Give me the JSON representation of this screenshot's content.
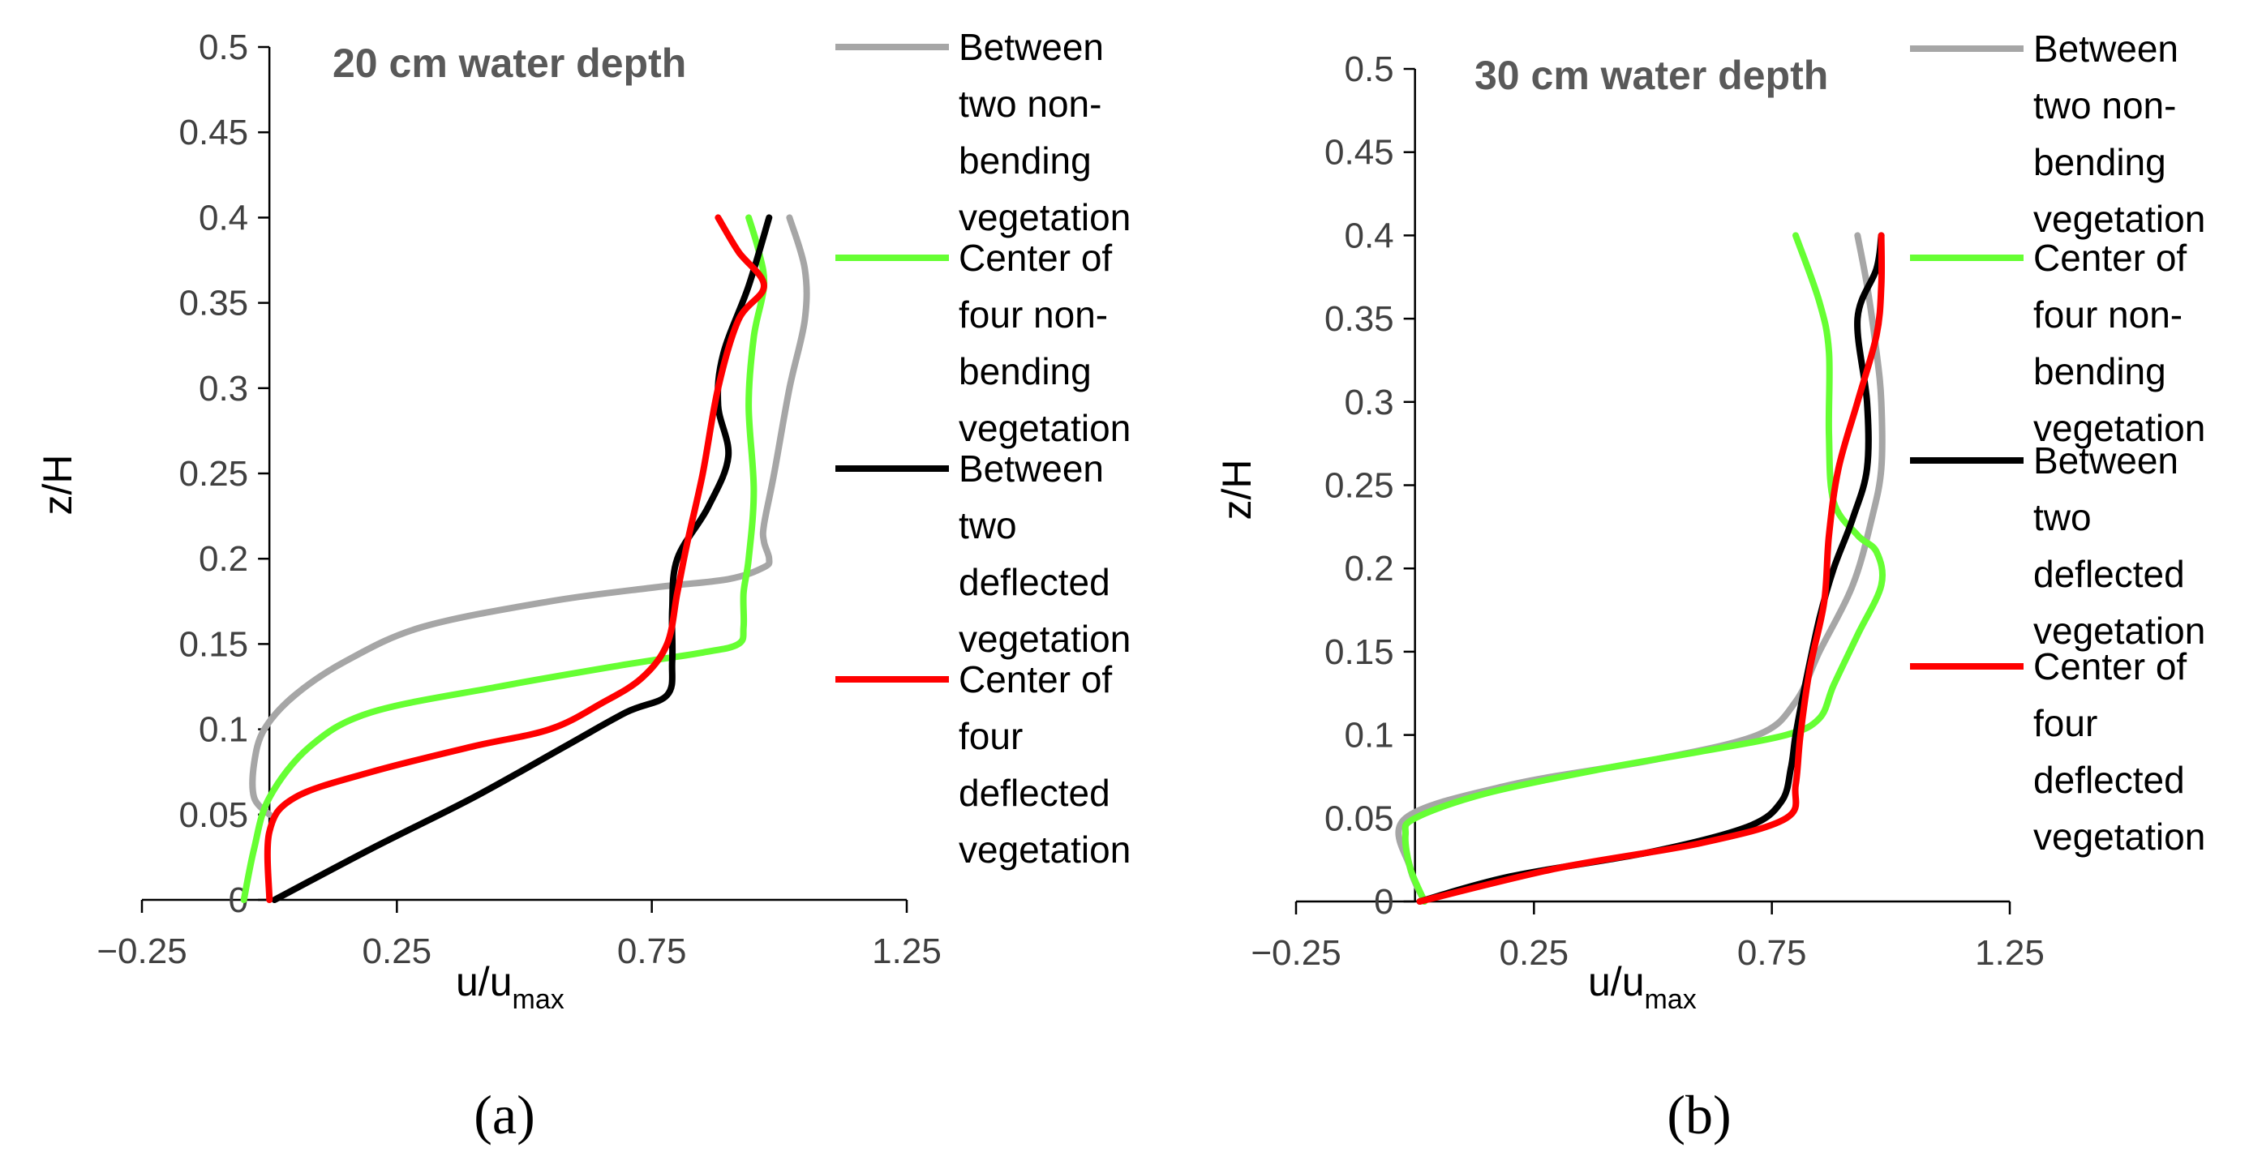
{
  "chart_data": [
    {
      "type": "line",
      "panel": "a",
      "title": "20 cm water depth",
      "xlabel_main": "u/u",
      "xlabel_sub": "max",
      "ylabel": "z/H",
      "xlim": [
        -0.25,
        1.25
      ],
      "ylim": [
        0,
        0.5
      ],
      "xticks": [
        -0.25,
        0.25,
        0.75,
        1.25
      ],
      "xtick_labels": [
        "−0.25",
        "0.25",
        "0.75",
        "1.25"
      ],
      "yticks": [
        0,
        0.05,
        0.1,
        0.15,
        0.2,
        0.25,
        0.3,
        0.35,
        0.4,
        0.45,
        0.5
      ],
      "ytick_labels": [
        "0",
        "0.05",
        "0.1",
        "0.15",
        "0.2",
        "0.25",
        "0.3",
        "0.35",
        "0.4",
        "0.45",
        "0.5"
      ],
      "legend_position": "right",
      "caption": "(a)",
      "series": [
        {
          "name": "Between two non-bending vegetation",
          "legend_lines": [
            "Between",
            "two non-",
            "bending",
            "vegetation"
          ],
          "color": "#a6a6a6",
          "points": [
            [
              0.0,
              0.05
            ],
            [
              -0.03,
              0.06
            ],
            [
              -0.03,
              0.08
            ],
            [
              -0.01,
              0.1
            ],
            [
              0.05,
              0.12
            ],
            [
              0.15,
              0.14
            ],
            [
              0.3,
              0.16
            ],
            [
              0.55,
              0.175
            ],
            [
              0.75,
              0.183
            ],
            [
              0.9,
              0.188
            ],
            [
              0.97,
              0.195
            ],
            [
              0.98,
              0.2
            ],
            [
              0.97,
              0.21
            ],
            [
              0.97,
              0.22
            ],
            [
              0.99,
              0.25
            ],
            [
              1.02,
              0.3
            ],
            [
              1.05,
              0.34
            ],
            [
              1.05,
              0.37
            ],
            [
              1.02,
              0.4
            ]
          ]
        },
        {
          "name": "Center of four non-bending vegetation",
          "legend_lines": [
            "Center of",
            "four non-",
            "bending",
            "vegetation"
          ],
          "color": "#66ff33",
          "points": [
            [
              -0.05,
              0.0
            ],
            [
              -0.03,
              0.03
            ],
            [
              0.0,
              0.06
            ],
            [
              0.08,
              0.09
            ],
            [
              0.2,
              0.11
            ],
            [
              0.45,
              0.125
            ],
            [
              0.7,
              0.138
            ],
            [
              0.85,
              0.145
            ],
            [
              0.92,
              0.15
            ],
            [
              0.93,
              0.16
            ],
            [
              0.93,
              0.18
            ],
            [
              0.94,
              0.2
            ],
            [
              0.95,
              0.24
            ],
            [
              0.94,
              0.29
            ],
            [
              0.95,
              0.33
            ],
            [
              0.97,
              0.36
            ],
            [
              0.96,
              0.38
            ],
            [
              0.94,
              0.4
            ]
          ]
        },
        {
          "name": "Between two deflected vegetation",
          "legend_lines": [
            "Between",
            "two",
            "deflected",
            "vegetation"
          ],
          "color": "#000000",
          "points": [
            [
              0.01,
              0.0
            ],
            [
              0.2,
              0.03
            ],
            [
              0.4,
              0.06
            ],
            [
              0.58,
              0.09
            ],
            [
              0.7,
              0.11
            ],
            [
              0.78,
              0.12
            ],
            [
              0.79,
              0.14
            ],
            [
              0.79,
              0.17
            ],
            [
              0.8,
              0.2
            ],
            [
              0.86,
              0.23
            ],
            [
              0.9,
              0.26
            ],
            [
              0.88,
              0.29
            ],
            [
              0.89,
              0.32
            ],
            [
              0.94,
              0.36
            ],
            [
              0.98,
              0.4
            ]
          ]
        },
        {
          "name": "Center of four deflected vegetation",
          "legend_lines": [
            "Center of",
            "four",
            "deflected",
            "vegetation"
          ],
          "color": "#ff0000",
          "points": [
            [
              0.0,
              0.0
            ],
            [
              0.0,
              0.04
            ],
            [
              0.05,
              0.06
            ],
            [
              0.2,
              0.075
            ],
            [
              0.4,
              0.09
            ],
            [
              0.55,
              0.1
            ],
            [
              0.65,
              0.115
            ],
            [
              0.73,
              0.13
            ],
            [
              0.78,
              0.15
            ],
            [
              0.8,
              0.18
            ],
            [
              0.82,
              0.21
            ],
            [
              0.85,
              0.25
            ],
            [
              0.88,
              0.3
            ],
            [
              0.92,
              0.34
            ],
            [
              0.97,
              0.36
            ],
            [
              0.92,
              0.38
            ],
            [
              0.88,
              0.4
            ]
          ]
        }
      ]
    },
    {
      "type": "line",
      "panel": "b",
      "title": "30 cm water depth",
      "xlabel_main": "u/u",
      "xlabel_sub": "max",
      "ylabel": "z/H",
      "xlim": [
        -0.25,
        1.25
      ],
      "ylim": [
        0,
        0.5
      ],
      "xticks": [
        -0.25,
        0.25,
        0.75,
        1.25
      ],
      "xtick_labels": [
        "−0.25",
        "0.25",
        "0.75",
        "1.25"
      ],
      "yticks": [
        0,
        0.05,
        0.1,
        0.15,
        0.2,
        0.25,
        0.3,
        0.35,
        0.4,
        0.45,
        0.5
      ],
      "ytick_labels": [
        "0",
        "0.05",
        "0.1",
        "0.15",
        "0.2",
        "0.25",
        "0.3",
        "0.35",
        "0.4",
        "0.45",
        "0.5"
      ],
      "legend_position": "right",
      "caption": "(b)",
      "series": [
        {
          "name": "Between two non-bending vegetation",
          "legend_lines": [
            "Between",
            "two non-",
            "bending",
            "vegetation"
          ],
          "color": "#a6a6a6",
          "points": [
            [
              0.02,
              0.0
            ],
            [
              -0.01,
              0.02
            ],
            [
              -0.02,
              0.05
            ],
            [
              0.2,
              0.07
            ],
            [
              0.5,
              0.085
            ],
            [
              0.72,
              0.1
            ],
            [
              0.8,
              0.12
            ],
            [
              0.85,
              0.15
            ],
            [
              0.92,
              0.19
            ],
            [
              0.96,
              0.23
            ],
            [
              0.98,
              0.26
            ],
            [
              0.98,
              0.3
            ],
            [
              0.97,
              0.33
            ],
            [
              0.95,
              0.37
            ],
            [
              0.93,
              0.4
            ]
          ]
        },
        {
          "name": "Center of four non-bending vegetation",
          "legend_lines": [
            "Center of",
            "four non-",
            "bending",
            "vegetation"
          ],
          "color": "#66ff33",
          "points": [
            [
              0.02,
              0.0
            ],
            [
              -0.01,
              0.02
            ],
            [
              -0.02,
              0.04
            ],
            [
              0.0,
              0.05
            ],
            [
              0.15,
              0.065
            ],
            [
              0.4,
              0.08
            ],
            [
              0.6,
              0.09
            ],
            [
              0.78,
              0.1
            ],
            [
              0.85,
              0.11
            ],
            [
              0.88,
              0.13
            ],
            [
              0.93,
              0.16
            ],
            [
              0.98,
              0.19
            ],
            [
              0.97,
              0.21
            ],
            [
              0.93,
              0.22
            ],
            [
              0.88,
              0.24
            ],
            [
              0.87,
              0.28
            ],
            [
              0.87,
              0.33
            ],
            [
              0.85,
              0.36
            ],
            [
              0.8,
              0.4
            ]
          ]
        },
        {
          "name": "Between two deflected vegetation",
          "legend_lines": [
            "Between",
            "two",
            "deflected",
            "vegetation"
          ],
          "color": "#000000",
          "points": [
            [
              0.01,
              0.0
            ],
            [
              0.2,
              0.015
            ],
            [
              0.5,
              0.03
            ],
            [
              0.7,
              0.045
            ],
            [
              0.77,
              0.06
            ],
            [
              0.79,
              0.08
            ],
            [
              0.8,
              0.1
            ],
            [
              0.82,
              0.13
            ],
            [
              0.85,
              0.17
            ],
            [
              0.88,
              0.2
            ],
            [
              0.92,
              0.23
            ],
            [
              0.95,
              0.26
            ],
            [
              0.95,
              0.3
            ],
            [
              0.93,
              0.35
            ],
            [
              0.97,
              0.38
            ],
            [
              0.98,
              0.4
            ]
          ]
        },
        {
          "name": "Center of four deflected vegetation",
          "legend_lines": [
            "Center of",
            "four",
            "deflected",
            "vegetation"
          ],
          "color": "#ff0000",
          "points": [
            [
              0.01,
              0.0
            ],
            [
              0.3,
              0.02
            ],
            [
              0.6,
              0.035
            ],
            [
              0.78,
              0.05
            ],
            [
              0.8,
              0.07
            ],
            [
              0.81,
              0.1
            ],
            [
              0.83,
              0.14
            ],
            [
              0.86,
              0.18
            ],
            [
              0.87,
              0.22
            ],
            [
              0.89,
              0.26
            ],
            [
              0.93,
              0.3
            ],
            [
              0.97,
              0.34
            ],
            [
              0.98,
              0.37
            ],
            [
              0.98,
              0.4
            ]
          ]
        }
      ]
    }
  ]
}
